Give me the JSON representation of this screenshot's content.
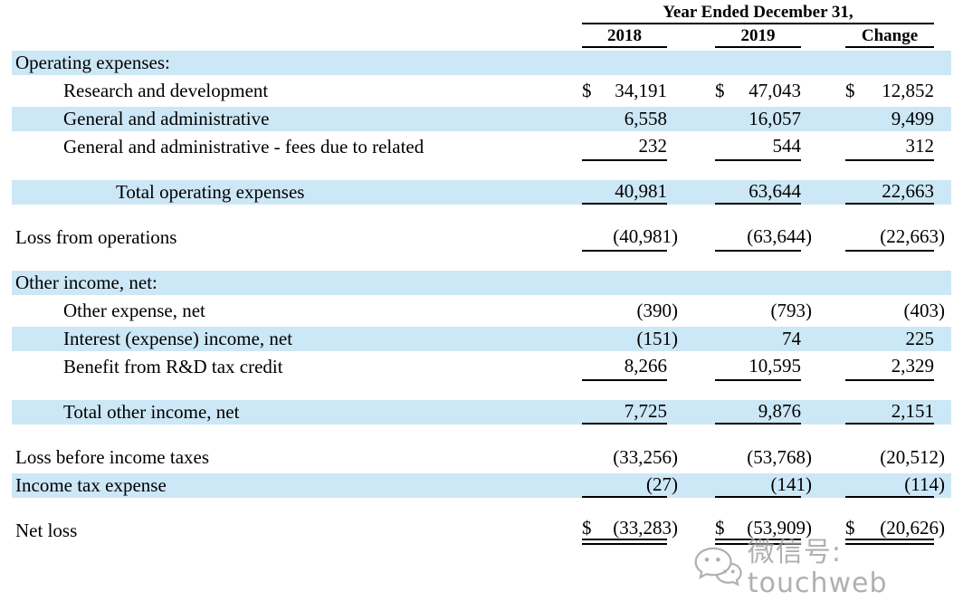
{
  "header": {
    "group_title": "Year Ended December 31,",
    "columns": [
      "2018",
      "2019",
      "Change"
    ]
  },
  "table": {
    "rows": [
      {
        "label": "Operating expenses:",
        "indent": 0,
        "bg": "blue",
        "values": [
          "",
          "",
          ""
        ],
        "rule": "none"
      },
      {
        "label": "Research and development",
        "indent": 1,
        "bg": "white",
        "values": [
          "$ 34,191",
          "$ 47,043",
          "$ 12,852"
        ],
        "rule": "none"
      },
      {
        "label": "General and administrative",
        "indent": 1,
        "bg": "blue",
        "values": [
          "6,558",
          "16,057",
          "9,499"
        ],
        "rule": "none"
      },
      {
        "label": "General and administrative - fees due to related",
        "indent": 1,
        "bg": "white",
        "values": [
          "232",
          "544",
          "312"
        ],
        "rule": "single"
      },
      {
        "type": "spacer"
      },
      {
        "label": "Total operating expenses",
        "indent": 2,
        "bg": "blue",
        "values": [
          "40,981",
          "63,644",
          "22,663"
        ],
        "rule": "single"
      },
      {
        "type": "spacer"
      },
      {
        "label": "Loss from operations",
        "indent": 0,
        "bg": "white",
        "values": [
          "(40,981)",
          "(63,644)",
          "(22,663)"
        ],
        "rule": "single"
      },
      {
        "type": "spacer"
      },
      {
        "label": "Other income, net:",
        "indent": 0,
        "bg": "blue",
        "values": [
          "",
          "",
          ""
        ],
        "rule": "none"
      },
      {
        "label": "Other expense, net",
        "indent": 1,
        "bg": "white",
        "values": [
          "(390)",
          "(793)",
          "(403)"
        ],
        "rule": "none"
      },
      {
        "label": "Interest (expense) income, net",
        "indent": 1,
        "bg": "blue",
        "values": [
          "(151)",
          "74",
          "225"
        ],
        "rule": "none"
      },
      {
        "label": "Benefit from R&D tax credit",
        "indent": 1,
        "bg": "white",
        "values": [
          "8,266",
          "10,595",
          "2,329"
        ],
        "rule": "single"
      },
      {
        "type": "spacer"
      },
      {
        "label": "Total other income, net",
        "indent": 1,
        "bg": "blue",
        "values": [
          "7,725",
          "9,876",
          "2,151"
        ],
        "rule": "single"
      },
      {
        "type": "spacer"
      },
      {
        "label": "Loss before income taxes",
        "indent": 0,
        "bg": "white",
        "values": [
          "(33,256)",
          "(53,768)",
          "(20,512)"
        ],
        "rule": "none"
      },
      {
        "label": "Income tax expense",
        "indent": 0,
        "bg": "blue",
        "values": [
          "(27)",
          "(141)",
          "(114)"
        ],
        "rule": "single"
      },
      {
        "type": "spacer"
      },
      {
        "label": "Net loss",
        "indent": 0,
        "bg": "white",
        "values": [
          "$(33,283)",
          "$(53,909)",
          "$ (20,626)"
        ],
        "rule": "double"
      }
    ]
  },
  "watermark": {
    "icon": "wechat-icon",
    "text": "微信号: touchweb"
  },
  "colors": {
    "stripe_blue": "#cce7f5",
    "rule_black": "#000000",
    "watermark_gray": "#9f9f9f",
    "background": "#ffffff"
  }
}
